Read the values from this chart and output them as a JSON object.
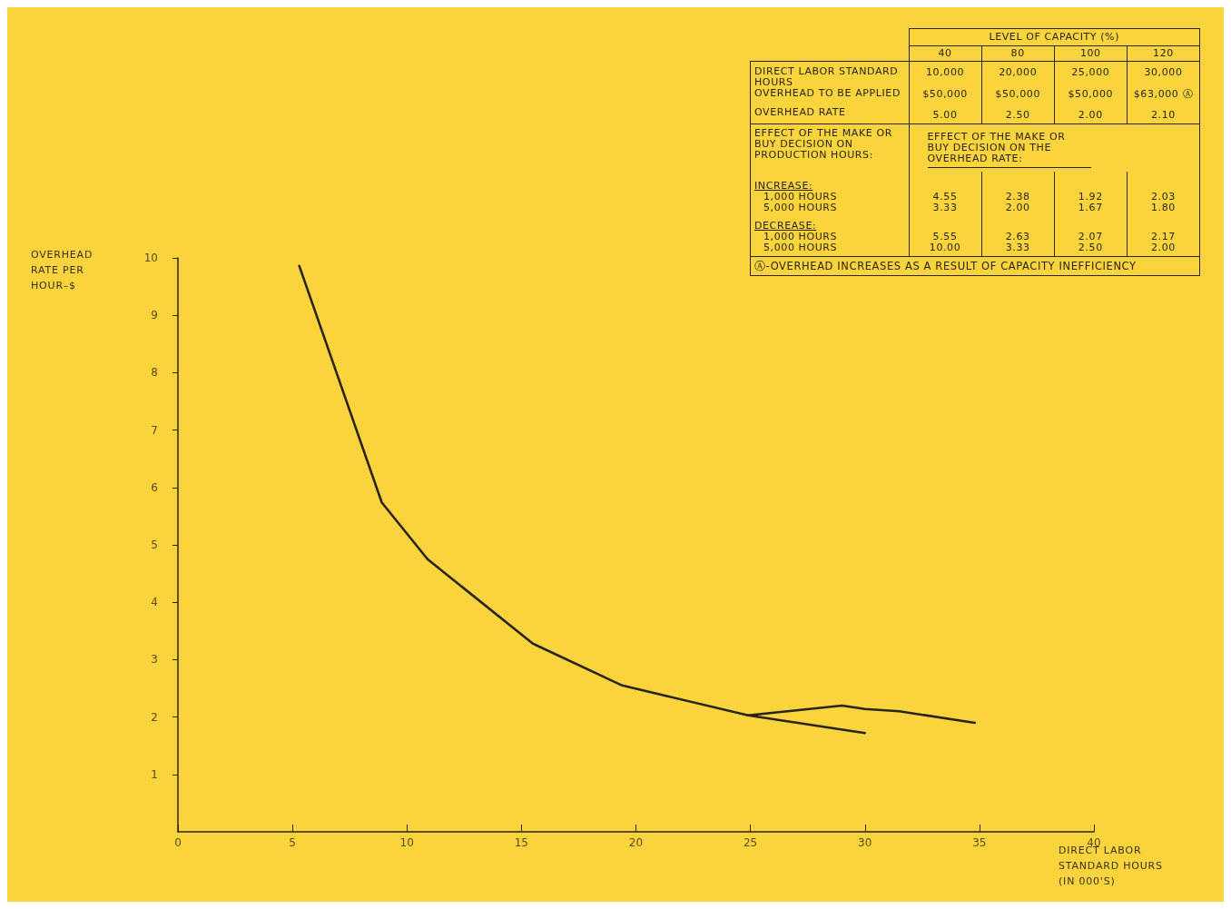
{
  "chart_data": [
    {
      "type": "line",
      "xlabel": "DIRECT LABOR STANDARD HOURS (IN 000'S)",
      "ylabel": "OVERHEAD RATE PER HOUR–$",
      "xlim": [
        0,
        40
      ],
      "xticks": [
        0,
        5,
        10,
        15,
        20,
        25,
        30,
        35,
        40
      ],
      "ylim": [
        0,
        10
      ],
      "yticks": [
        1,
        2,
        3,
        4,
        5,
        6,
        7,
        8,
        9,
        10
      ],
      "grid": false,
      "marker": "none",
      "line_style": "solid",
      "series": [
        {
          "color": "#2a2418",
          "x": [
            5.3,
            8.9,
            10.9,
            15.5,
            19.4,
            24.9,
            29,
            30,
            31.5,
            34.8
          ],
          "values": [
            9.86,
            5.74,
            4.75,
            3.28,
            2.55,
            2.03,
            2.2,
            2.14,
            2.1,
            1.9
          ]
        },
        {
          "color": "#2a2418",
          "x": [
            24.9,
            30
          ],
          "values": [
            2.03,
            1.72
          ]
        }
      ]
    },
    {
      "type": "other",
      "title": "LEVEL OF CAPACITY (%)",
      "categories": [
        "40",
        "80",
        "100",
        "120"
      ],
      "y_categories": [
        "DIRECT LABOR STANDARD HOURS",
        "OVERHEAD TO BE APPLIED",
        "OVERHEAD RATE",
        "1,000 HOURS",
        "5,000 HOURS",
        "1,000 HOURS",
        "5,000 HOURS"
      ],
      "cell_labels": [
        [
          "10,000",
          "20,000",
          "25,000",
          "30,000"
        ],
        [
          "$50,000",
          "$50,000",
          "$50,000",
          "$63,000 Ⓐ"
        ],
        [
          "5.00",
          "2.50",
          "2.00",
          "2.10"
        ],
        [
          "4.55",
          "2.38",
          "1.92",
          "2.03"
        ],
        [
          "3.33",
          "2.00",
          "1.67",
          "1.80"
        ],
        [
          "5.55",
          "2.63",
          "2.07",
          "2.17"
        ],
        [
          "10.00",
          "3.33",
          "2.50",
          "2.00"
        ]
      ],
      "annotations": [
        "EFFECT OF THE MAKE OR BUY DECISION ON PRODUCTION HOURS:",
        "EFFECT OF THE MAKE OR BUY DECISION ON THE OVERHEAD RATE:",
        "INCREASE:",
        "DECREASE:",
        "Ⓐ-OVERHEAD INCREASES AS A RESULT OF CAPACITY INEFFICIENCY"
      ]
    }
  ]
}
